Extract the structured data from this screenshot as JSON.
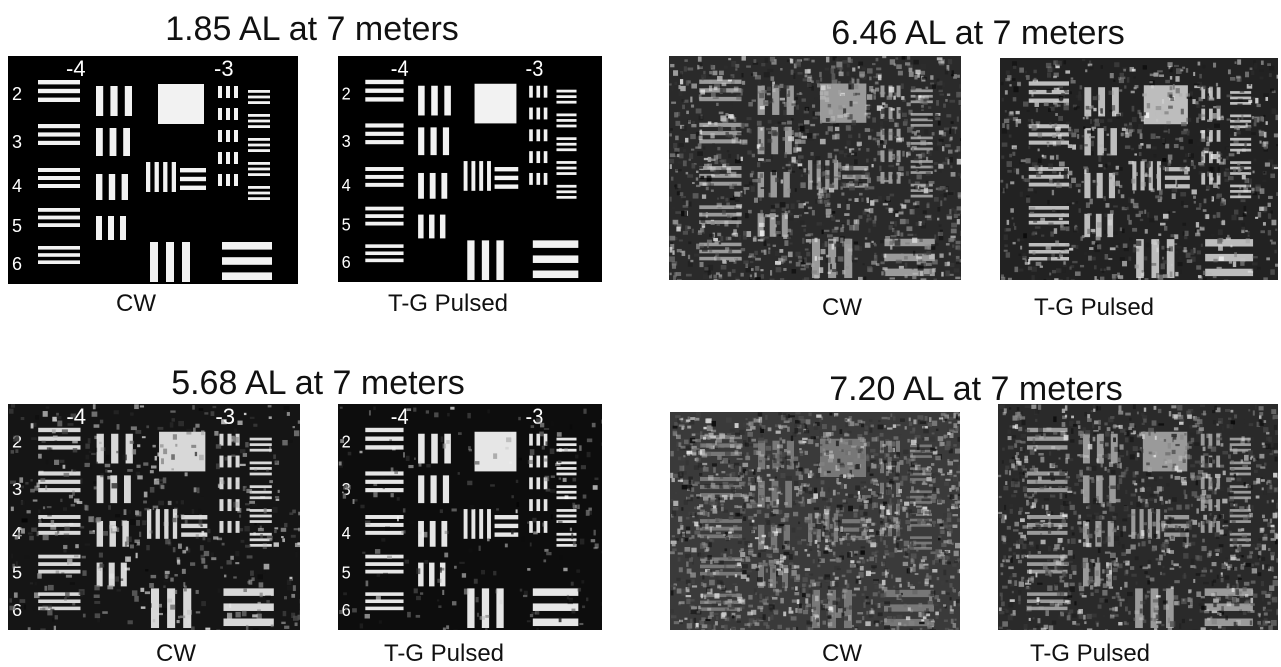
{
  "panels": [
    {
      "title": "1.85 AL at 7 meters",
      "captions": [
        "CW",
        "T-G Pulsed"
      ]
    },
    {
      "title": "6.46 AL at 7 meters",
      "captions": [
        "CW",
        "T-G Pulsed"
      ]
    },
    {
      "title": "5.68 AL at 7 meters",
      "captions": [
        "CW",
        "T-G Pulsed"
      ]
    },
    {
      "title": "7.20 AL at 7 meters",
      "captions": [
        "CW",
        "T-G Pulsed"
      ]
    }
  ],
  "target_labels": {
    "group_left": "-4",
    "group_right": "-3",
    "rows": [
      "2",
      "3",
      "4",
      "5",
      "6"
    ]
  }
}
